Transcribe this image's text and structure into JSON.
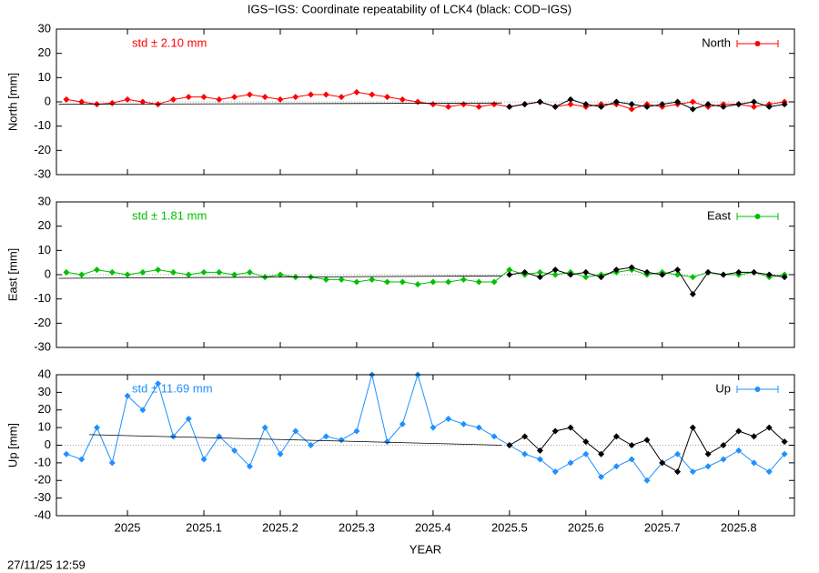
{
  "title": "IGS−IGS: Coordinate repeatability of LCK4 (black: COD−IGS)",
  "footer": "27/11/25 12:59",
  "chart_data": [
    {
      "type": "line",
      "ylabel": "North [mm]",
      "annotation": "std ± 2.10 mm",
      "annotation_color": "#ff0000",
      "xlim": [
        2024.907,
        2025.873
      ],
      "xticks": [
        2025,
        2025.1,
        2025.2,
        2025.3,
        2025.4,
        2025.5,
        2025.6,
        2025.7,
        2025.8
      ],
      "ylim": [
        -30,
        30
      ],
      "yticks": [
        -30,
        -20,
        -10,
        0,
        10,
        20,
        30
      ],
      "legend": "top-right",
      "trend": {
        "color": "#000000",
        "x": [
          2024.91,
          2025.49
        ],
        "values": [
          -1,
          -0.5
        ]
      },
      "series": [
        {
          "name": "North",
          "color": "#ff0000",
          "x": [
            2024.92,
            2024.94,
            2024.96,
            2024.98,
            2025.0,
            2025.02,
            2025.04,
            2025.06,
            2025.08,
            2025.1,
            2025.12,
            2025.14,
            2025.16,
            2025.18,
            2025.2,
            2025.22,
            2025.24,
            2025.26,
            2025.28,
            2025.3,
            2025.32,
            2025.34,
            2025.36,
            2025.38,
            2025.4,
            2025.42,
            2025.44,
            2025.46,
            2025.48,
            2025.5,
            2025.52,
            2025.54,
            2025.56,
            2025.58,
            2025.6,
            2025.62,
            2025.64,
            2025.66,
            2025.68,
            2025.7,
            2025.72,
            2025.74,
            2025.76,
            2025.78,
            2025.8,
            2025.82,
            2025.84,
            2025.86
          ],
          "values": [
            1,
            0,
            -1,
            -0.5,
            1,
            0,
            -1,
            1,
            2,
            2,
            1,
            2,
            3,
            2,
            1,
            2,
            3,
            3,
            2,
            4,
            3,
            2,
            1,
            0,
            -1,
            -2,
            -1,
            -2,
            -1,
            -2,
            -1,
            0,
            -2,
            -1,
            -2,
            -1,
            -1,
            -3,
            -1,
            -2,
            -1,
            0,
            -2,
            -1,
            -1,
            -2,
            -1,
            0
          ]
        },
        {
          "color": "#000000",
          "x": [
            2025.5,
            2025.52,
            2025.54,
            2025.56,
            2025.58,
            2025.6,
            2025.62,
            2025.64,
            2025.66,
            2025.68,
            2025.7,
            2025.72,
            2025.74,
            2025.76,
            2025.78,
            2025.8,
            2025.82,
            2025.84,
            2025.86
          ],
          "values": [
            -2,
            -1,
            0,
            -2,
            1,
            -1,
            -2,
            0,
            -1,
            -2,
            -1,
            0,
            -3,
            -1,
            -2,
            -1,
            0,
            -2,
            -1
          ]
        }
      ]
    },
    {
      "type": "line",
      "ylabel": "East [mm]",
      "annotation": "std ± 1.81 mm",
      "annotation_color": "#00c000",
      "xlim": [
        2024.907,
        2025.873
      ],
      "xticks": [
        2025,
        2025.1,
        2025.2,
        2025.3,
        2025.4,
        2025.5,
        2025.6,
        2025.7,
        2025.8
      ],
      "ylim": [
        -30,
        30
      ],
      "yticks": [
        -30,
        -20,
        -10,
        0,
        10,
        20,
        30
      ],
      "legend": "top-right",
      "trend": {
        "color": "#000000",
        "x": [
          2024.91,
          2025.49
        ],
        "values": [
          -1.5,
          -0.5
        ]
      },
      "series": [
        {
          "name": "East",
          "color": "#00c000",
          "x": [
            2024.92,
            2024.94,
            2024.96,
            2024.98,
            2025.0,
            2025.02,
            2025.04,
            2025.06,
            2025.08,
            2025.1,
            2025.12,
            2025.14,
            2025.16,
            2025.18,
            2025.2,
            2025.22,
            2025.24,
            2025.26,
            2025.28,
            2025.3,
            2025.32,
            2025.34,
            2025.36,
            2025.38,
            2025.4,
            2025.42,
            2025.44,
            2025.46,
            2025.48,
            2025.5,
            2025.52,
            2025.54,
            2025.56,
            2025.58,
            2025.6,
            2025.62,
            2025.64,
            2025.66,
            2025.68,
            2025.7,
            2025.72,
            2025.74,
            2025.76,
            2025.78,
            2025.8,
            2025.82,
            2025.84,
            2025.86
          ],
          "values": [
            1,
            0,
            2,
            1,
            0,
            1,
            2,
            1,
            0,
            1,
            1,
            0,
            1,
            -1,
            0,
            -1,
            -1,
            -2,
            -2,
            -3,
            -2,
            -3,
            -3,
            -4,
            -3,
            -3,
            -2,
            -3,
            -3,
            2,
            0,
            1,
            0,
            1,
            -1,
            0,
            1,
            2,
            0,
            1,
            0,
            -1,
            1,
            0,
            0,
            1,
            -1,
            0
          ]
        },
        {
          "color": "#000000",
          "x": [
            2025.5,
            2025.52,
            2025.54,
            2025.56,
            2025.58,
            2025.6,
            2025.62,
            2025.64,
            2025.66,
            2025.68,
            2025.7,
            2025.72,
            2025.74,
            2025.76,
            2025.78,
            2025.8,
            2025.82,
            2025.84,
            2025.86
          ],
          "values": [
            0,
            1,
            -1,
            2,
            0,
            1,
            -1,
            2,
            3,
            1,
            0,
            2,
            -8,
            1,
            0,
            1,
            1,
            0,
            -1
          ]
        }
      ]
    },
    {
      "type": "line",
      "ylabel": "Up [mm]",
      "xlabel": "YEAR",
      "annotation": "std ± 11.69 mm",
      "annotation_color": "#1e90ff",
      "xlim": [
        2024.907,
        2025.873
      ],
      "xticks": [
        2025,
        2025.1,
        2025.2,
        2025.3,
        2025.4,
        2025.5,
        2025.6,
        2025.7,
        2025.8
      ],
      "ylim": [
        -40,
        40
      ],
      "yticks": [
        -40,
        -30,
        -20,
        -10,
        0,
        10,
        20,
        30,
        40
      ],
      "legend": "top-right",
      "trend": {
        "color": "#000000",
        "x": [
          2024.95,
          2025.49
        ],
        "values": [
          6,
          0
        ]
      },
      "series": [
        {
          "name": "Up",
          "color": "#1e90ff",
          "x": [
            2024.92,
            2024.94,
            2024.96,
            2024.98,
            2025.0,
            2025.02,
            2025.04,
            2025.06,
            2025.08,
            2025.1,
            2025.12,
            2025.14,
            2025.16,
            2025.18,
            2025.2,
            2025.22,
            2025.24,
            2025.26,
            2025.28,
            2025.3,
            2025.32,
            2025.34,
            2025.36,
            2025.38,
            2025.4,
            2025.42,
            2025.44,
            2025.46,
            2025.48,
            2025.5,
            2025.52,
            2025.54,
            2025.56,
            2025.58,
            2025.6,
            2025.62,
            2025.64,
            2025.66,
            2025.68,
            2025.7,
            2025.72,
            2025.74,
            2025.76,
            2025.78,
            2025.8,
            2025.82,
            2025.84,
            2025.86
          ],
          "values": [
            -5,
            -8,
            10,
            -10,
            28,
            20,
            35,
            5,
            15,
            -8,
            5,
            -3,
            -12,
            10,
            -5,
            8,
            0,
            5,
            3,
            8,
            40,
            2,
            12,
            40,
            10,
            15,
            12,
            10,
            5,
            0,
            -5,
            -8,
            -15,
            -10,
            -5,
            -18,
            -12,
            -8,
            -20,
            -10,
            -5,
            -15,
            -12,
            -8,
            -3,
            -10,
            -15,
            -5
          ]
        },
        {
          "color": "#000000",
          "x": [
            2025.5,
            2025.52,
            2025.54,
            2025.56,
            2025.58,
            2025.6,
            2025.62,
            2025.64,
            2025.66,
            2025.68,
            2025.7,
            2025.72,
            2025.74,
            2025.76,
            2025.78,
            2025.8,
            2025.82,
            2025.84,
            2025.86
          ],
          "values": [
            0,
            5,
            -3,
            8,
            10,
            2,
            -5,
            5,
            0,
            3,
            -10,
            -15,
            10,
            -5,
            0,
            8,
            5,
            10,
            2
          ]
        }
      ]
    }
  ]
}
